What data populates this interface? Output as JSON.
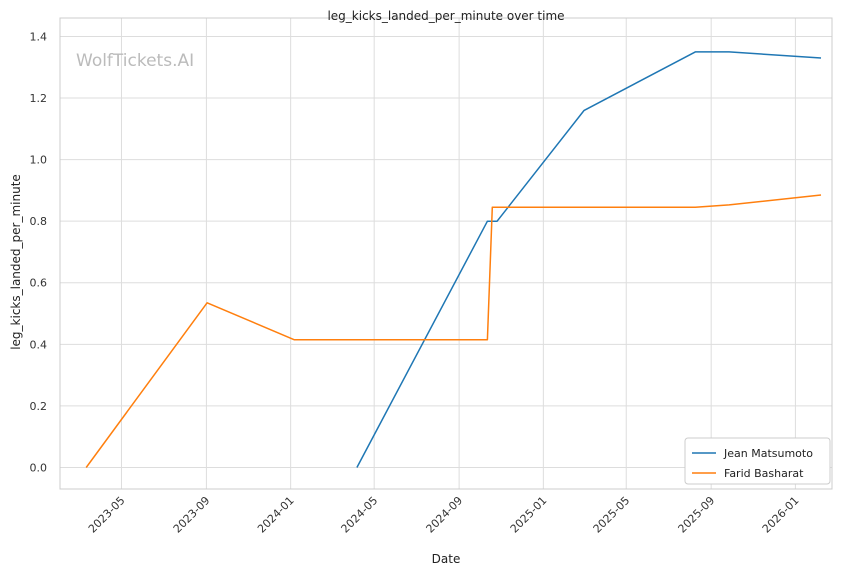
{
  "chart_data": {
    "type": "line",
    "title": "leg_kicks_landed_per_minute over time",
    "xlabel": "Date",
    "ylabel": "leg_kicks_landed_per_minute",
    "watermark": "WolfTickets.AI",
    "x_ticks": [
      "2023-05",
      "2023-09",
      "2024-01",
      "2024-05",
      "2024-09",
      "2025-01",
      "2025-05",
      "2025-09",
      "2026-01"
    ],
    "y_ticks": [
      "0.0",
      "0.2",
      "0.4",
      "0.6",
      "0.8",
      "1.0",
      "1.2",
      "1.4"
    ],
    "xlim": [
      "2023-02-01",
      "2026-02-23"
    ],
    "ylim": [
      -0.07,
      1.46
    ],
    "grid": true,
    "legend_position": "lower-right",
    "series": [
      {
        "name": "Jean Matsumoto",
        "color": "#1f77b4",
        "points": [
          {
            "x": "2024-04-06",
            "y": 0.0
          },
          {
            "x": "2024-10-12",
            "y": 0.8
          },
          {
            "x": "2024-10-26",
            "y": 0.8
          },
          {
            "x": "2025-03-01",
            "y": 1.16
          },
          {
            "x": "2025-08-09",
            "y": 1.35
          },
          {
            "x": "2025-09-27",
            "y": 1.35
          },
          {
            "x": "2026-02-07",
            "y": 1.33
          }
        ]
      },
      {
        "name": "Farid Basharat",
        "color": "#ff7f0e",
        "points": [
          {
            "x": "2023-03-11",
            "y": 0.0
          },
          {
            "x": "2023-09-02",
            "y": 0.535
          },
          {
            "x": "2024-01-06",
            "y": 0.415
          },
          {
            "x": "2024-10-12",
            "y": 0.415
          },
          {
            "x": "2024-10-19",
            "y": 0.845
          },
          {
            "x": "2025-08-09",
            "y": 0.845
          },
          {
            "x": "2025-09-27",
            "y": 0.853
          },
          {
            "x": "2026-02-07",
            "y": 0.885
          }
        ]
      }
    ]
  }
}
